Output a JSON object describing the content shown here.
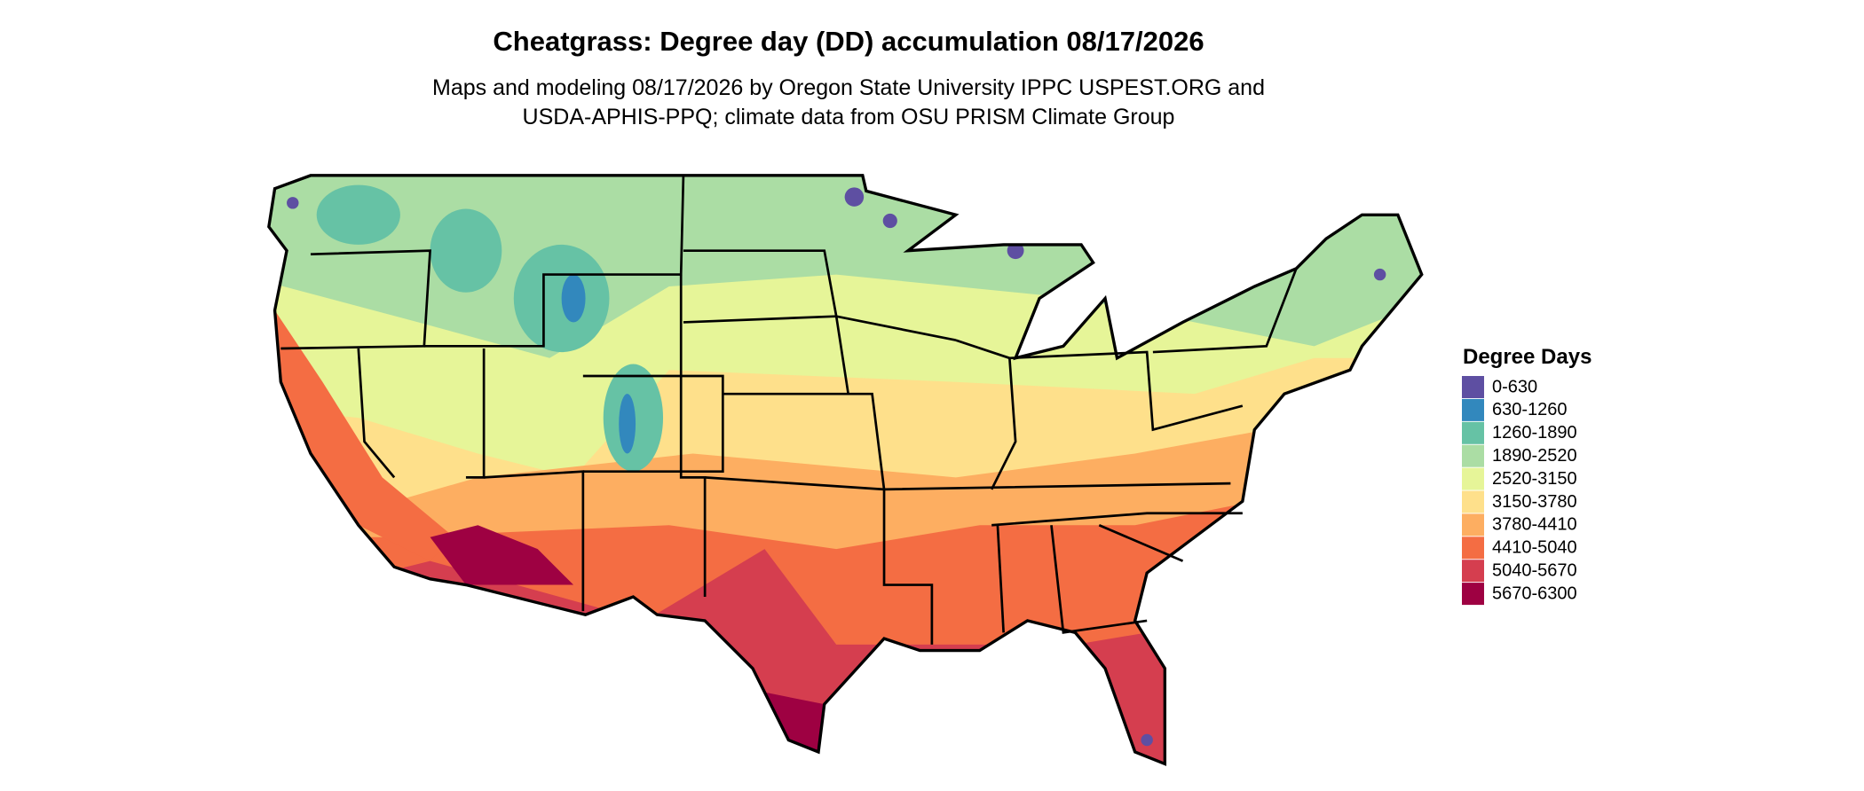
{
  "title": "Cheatgrass: Degree day (DD) accumulation 08/17/2026",
  "subtitle": [
    "Maps and modeling 08/17/2026 by Oregon State University IPPC USPEST.ORG and",
    "USDA-APHIS-PPQ; climate data from OSU PRISM Climate Group"
  ],
  "legend": {
    "title": "Degree Days",
    "items": [
      {
        "label": "0-630",
        "color": "#5e4fa2"
      },
      {
        "label": "630-1260",
        "color": "#3288bd"
      },
      {
        "label": "1260-1890",
        "color": "#66c2a5"
      },
      {
        "label": "1890-2520",
        "color": "#abdda4"
      },
      {
        "label": "2520-3150",
        "color": "#e6f598"
      },
      {
        "label": "3150-3780",
        "color": "#fee08b"
      },
      {
        "label": "3780-4410",
        "color": "#fdae61"
      },
      {
        "label": "4410-5040",
        "color": "#f46d43"
      },
      {
        "label": "5040-5670",
        "color": "#d53e4f"
      },
      {
        "label": "5670-6300",
        "color": "#9e0142"
      }
    ]
  }
}
